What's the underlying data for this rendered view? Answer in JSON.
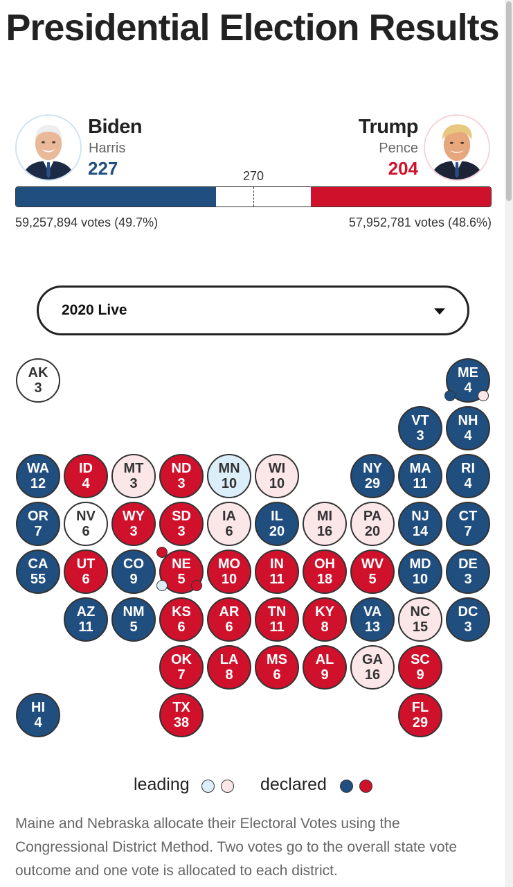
{
  "page": {
    "title": "Presidential Election Results"
  },
  "colors": {
    "dem_declared": "#1f4e7f",
    "rep_declared": "#d0112b",
    "dem_leading": "#dceefa",
    "rep_leading": "#fbe6e8",
    "none": "#ffffff"
  },
  "candidates": {
    "dem": {
      "name": "Biden",
      "running_mate": "Harris",
      "electoral_votes": "227",
      "popular_votes": "59,257,894 votes (49.7%)",
      "ev_fraction": 0.4219,
      "avatar_icon": "biden-portrait"
    },
    "rep": {
      "name": "Trump",
      "running_mate": "Pence",
      "electoral_votes": "204",
      "popular_votes": "57,952,781 votes (48.6%)",
      "ev_fraction": 0.3792,
      "avatar_icon": "trump-portrait"
    }
  },
  "threshold": {
    "label": "270",
    "fraction": 0.5
  },
  "selector": {
    "value": "2020 Live"
  },
  "states": [
    {
      "abbr": "AK",
      "ev": "3",
      "status": "none"
    },
    {
      "abbr": "ME",
      "ev": "4",
      "status": "dem-declared"
    },
    {
      "abbr": "VT",
      "ev": "3",
      "status": "dem-declared"
    },
    {
      "abbr": "NH",
      "ev": "4",
      "status": "dem-declared"
    },
    {
      "abbr": "WA",
      "ev": "12",
      "status": "dem-declared"
    },
    {
      "abbr": "ID",
      "ev": "4",
      "status": "rep-declared"
    },
    {
      "abbr": "MT",
      "ev": "3",
      "status": "rep-leading"
    },
    {
      "abbr": "ND",
      "ev": "3",
      "status": "rep-declared"
    },
    {
      "abbr": "MN",
      "ev": "10",
      "status": "dem-leading"
    },
    {
      "abbr": "WI",
      "ev": "10",
      "status": "rep-leading"
    },
    {
      "abbr": "NY",
      "ev": "29",
      "status": "dem-declared"
    },
    {
      "abbr": "MA",
      "ev": "11",
      "status": "dem-declared"
    },
    {
      "abbr": "RI",
      "ev": "4",
      "status": "dem-declared"
    },
    {
      "abbr": "OR",
      "ev": "7",
      "status": "dem-declared"
    },
    {
      "abbr": "NV",
      "ev": "6",
      "status": "none"
    },
    {
      "abbr": "WY",
      "ev": "3",
      "status": "rep-declared"
    },
    {
      "abbr": "SD",
      "ev": "3",
      "status": "rep-declared"
    },
    {
      "abbr": "IA",
      "ev": "6",
      "status": "rep-leading"
    },
    {
      "abbr": "IL",
      "ev": "20",
      "status": "dem-declared"
    },
    {
      "abbr": "MI",
      "ev": "16",
      "status": "rep-leading"
    },
    {
      "abbr": "PA",
      "ev": "20",
      "status": "rep-leading"
    },
    {
      "abbr": "NJ",
      "ev": "14",
      "status": "dem-declared"
    },
    {
      "abbr": "CT",
      "ev": "7",
      "status": "dem-declared"
    },
    {
      "abbr": "CA",
      "ev": "55",
      "status": "dem-declared"
    },
    {
      "abbr": "UT",
      "ev": "6",
      "status": "rep-declared"
    },
    {
      "abbr": "CO",
      "ev": "9",
      "status": "dem-declared"
    },
    {
      "abbr": "NE",
      "ev": "5",
      "status": "rep-declared"
    },
    {
      "abbr": "MO",
      "ev": "10",
      "status": "rep-declared"
    },
    {
      "abbr": "IN",
      "ev": "11",
      "status": "rep-declared"
    },
    {
      "abbr": "OH",
      "ev": "18",
      "status": "rep-declared"
    },
    {
      "abbr": "WV",
      "ev": "5",
      "status": "rep-declared"
    },
    {
      "abbr": "MD",
      "ev": "10",
      "status": "dem-declared"
    },
    {
      "abbr": "DE",
      "ev": "3",
      "status": "dem-declared"
    },
    {
      "abbr": "AZ",
      "ev": "11",
      "status": "dem-declared"
    },
    {
      "abbr": "NM",
      "ev": "5",
      "status": "dem-declared"
    },
    {
      "abbr": "KS",
      "ev": "6",
      "status": "rep-declared"
    },
    {
      "abbr": "AR",
      "ev": "6",
      "status": "rep-declared"
    },
    {
      "abbr": "TN",
      "ev": "11",
      "status": "rep-declared"
    },
    {
      "abbr": "KY",
      "ev": "8",
      "status": "rep-declared"
    },
    {
      "abbr": "VA",
      "ev": "13",
      "status": "dem-declared"
    },
    {
      "abbr": "NC",
      "ev": "15",
      "status": "rep-leading"
    },
    {
      "abbr": "DC",
      "ev": "3",
      "status": "dem-declared"
    },
    {
      "abbr": "OK",
      "ev": "7",
      "status": "rep-declared"
    },
    {
      "abbr": "LA",
      "ev": "8",
      "status": "rep-declared"
    },
    {
      "abbr": "MS",
      "ev": "6",
      "status": "rep-declared"
    },
    {
      "abbr": "AL",
      "ev": "9",
      "status": "rep-declared"
    },
    {
      "abbr": "GA",
      "ev": "16",
      "status": "rep-leading"
    },
    {
      "abbr": "SC",
      "ev": "9",
      "status": "rep-declared"
    },
    {
      "abbr": "HI",
      "ev": "4",
      "status": "dem-declared"
    },
    {
      "abbr": "TX",
      "ev": "38",
      "status": "rep-declared"
    },
    {
      "abbr": "FL",
      "ev": "29",
      "status": "rep-declared"
    }
  ],
  "districts": {
    "ME": [
      "dem-declared",
      "rep-leading"
    ],
    "NE": [
      "rep-declared",
      "dem-leading",
      "rep-declared"
    ]
  },
  "legend": {
    "leading_label": "leading",
    "declared_label": "declared"
  },
  "footnote": "Maine and Nebraska allocate their Electoral Votes using the Congressional District Method. Two votes go to the overall state vote outcome and one vote is allocated to each district."
}
